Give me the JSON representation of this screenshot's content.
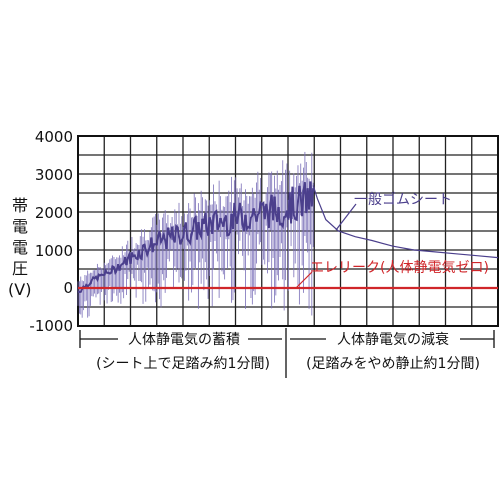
{
  "chart_data": {
    "type": "line",
    "ylabel_chars": [
      "帯",
      "電",
      "電",
      "圧",
      "(V)"
    ],
    "yticks": [
      "4000",
      "3000",
      "2000",
      "1000",
      "0",
      "-1000"
    ],
    "ylim": [
      -1000,
      4000
    ],
    "x_gridlines": 16,
    "grid": true,
    "phases": [
      {
        "label": "人体静電気の蓄積",
        "sublabel": "(シート上で足踏み約1分間)"
      },
      {
        "label": "人体静電気の減衰",
        "sublabel": "(足踏みをやめ静止約1分間)"
      }
    ],
    "series": [
      {
        "name": "一般ゴムシート",
        "color": "#4b3f8c",
        "envelope_x": [
          0,
          0.04,
          0.08,
          0.12,
          0.16,
          0.2,
          0.24,
          0.28,
          0.32,
          0.36,
          0.4,
          0.44,
          0.48,
          0.5,
          0.52,
          0.54,
          0.56
        ],
        "envelope_y": [
          -100,
          250,
          450,
          750,
          1050,
          1250,
          1400,
          1550,
          1700,
          1800,
          1900,
          2000,
          2050,
          2150,
          2200,
          2300,
          2350
        ],
        "decay_x": [
          0.56,
          0.57,
          0.59,
          0.62,
          0.66,
          0.7,
          0.75,
          0.8,
          0.85,
          0.9,
          0.95,
          1.0
        ],
        "decay_y": [
          2700,
          2350,
          1800,
          1500,
          1350,
          1250,
          1100,
          1000,
          950,
          900,
          850,
          800
        ]
      },
      {
        "name": "エレリーク(人体静電気ゼロ)",
        "color": "#d0262a",
        "x": [
          0,
          1
        ],
        "y": [
          0,
          0
        ]
      }
    ]
  }
}
